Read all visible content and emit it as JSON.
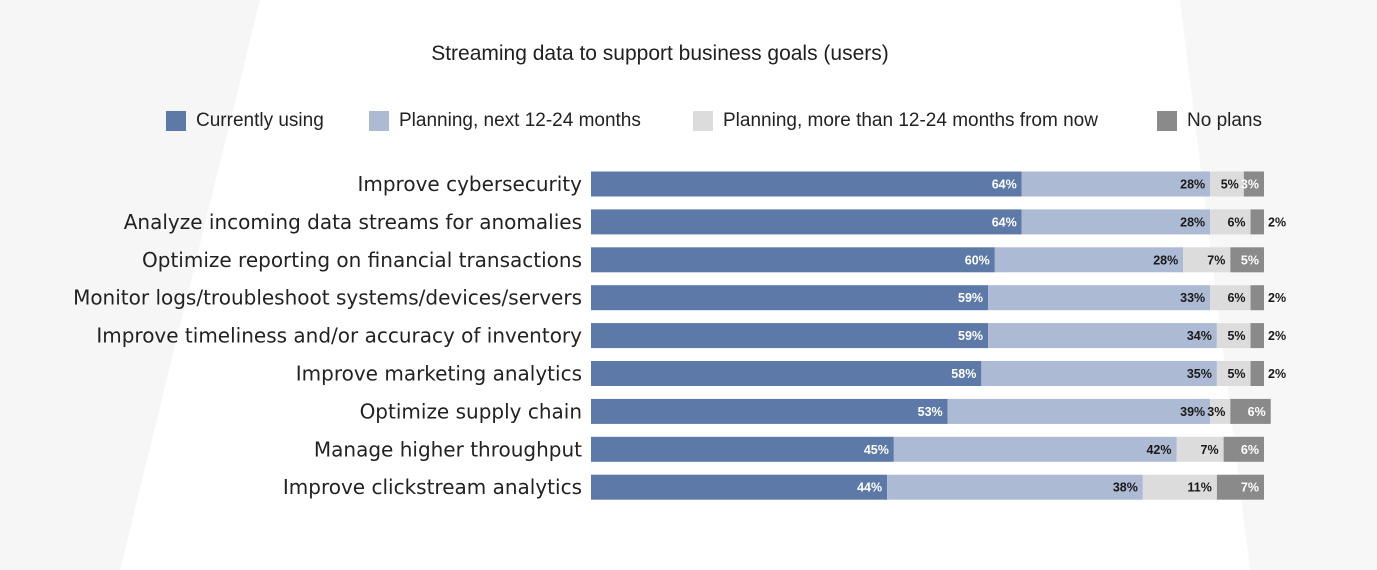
{
  "chart_data": {
    "type": "bar",
    "orientation": "horizontal",
    "stacked": true,
    "title": "Streaming data to support business goals (users)",
    "xlabel": "",
    "ylabel": "",
    "xlim": [
      0,
      100
    ],
    "grid": false,
    "legend_position": "top",
    "categories": [
      "Improve cybersecurity",
      "Analyze incoming data streams for anomalies",
      "Optimize reporting on financial transactions",
      "Monitor logs/troubleshoot systems/devices/servers",
      "Improve timeliness and/or accuracy of inventory",
      "Improve marketing analytics",
      "Optimize supply chain",
      "Manage higher throughput",
      "Improve clickstream analytics"
    ],
    "series": [
      {
        "name": "Currently using",
        "color": "#5c79a8",
        "label_color": "#ffffff",
        "values": [
          64,
          64,
          60,
          59,
          59,
          58,
          53,
          45,
          44
        ]
      },
      {
        "name": "Planning, next 12-24 months",
        "color": "#adbad4",
        "label_color": "#1a1a1a",
        "values": [
          28,
          28,
          28,
          33,
          34,
          35,
          39,
          42,
          38
        ]
      },
      {
        "name": "Planning, more than 12-24 months from now",
        "color": "#dcdcdc",
        "label_color": "#1a1a1a",
        "values": [
          5,
          6,
          7,
          6,
          5,
          5,
          3,
          7,
          11
        ]
      },
      {
        "name": "No plans",
        "color": "#8a8a8a",
        "label_color": "#ffffff",
        "values": [
          3,
          2,
          5,
          2,
          2,
          2,
          6,
          6,
          7
        ]
      }
    ],
    "value_suffix": "%"
  }
}
